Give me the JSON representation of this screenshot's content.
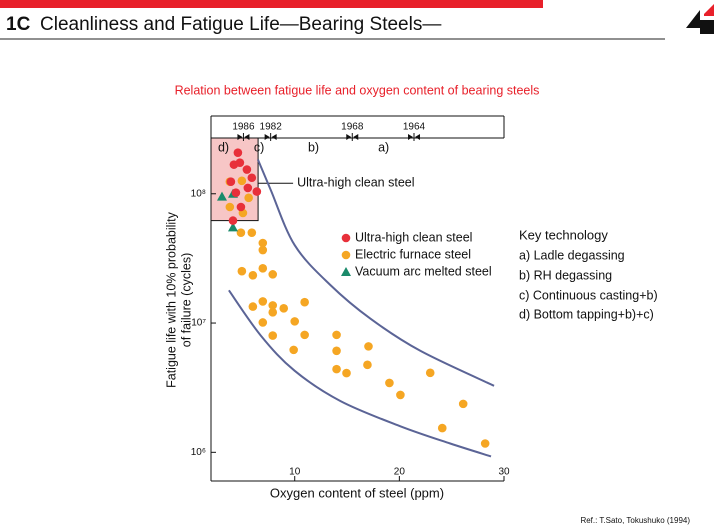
{
  "chart_data": {
    "type": "scatter",
    "section": "1C",
    "title": "Cleanliness and Fatigue Life—Bearing Steels—",
    "subtitle": "Relation between fatigue life and oxygen content of bearing steels",
    "xlabel": "Oxygen content of steel (ppm)",
    "ylabel": [
      "Fatigue life with 10% probability",
      "of failure (cycles)"
    ],
    "xlim": [
      2,
      30
    ],
    "ylim": [
      600000,
      270000000
    ],
    "log_y": true,
    "xticks": [
      10,
      20,
      30
    ],
    "yticks": [
      {
        "value": 1000000,
        "label": "10⁶"
      },
      {
        "value": 10000000,
        "label": "10⁷"
      },
      {
        "value": 100000000,
        "label": "10⁸"
      }
    ],
    "timeline": [
      {
        "label": "1986",
        "x": 5.1
      },
      {
        "label": "1982",
        "x": 7.7
      },
      {
        "label": "1968",
        "x": 15.5
      },
      {
        "label": "1964",
        "x": 21.4
      }
    ],
    "regions": [
      {
        "label": "d)",
        "x": 3.2
      },
      {
        "label": "c)",
        "x": 6.6
      },
      {
        "label": "b)",
        "x": 11.8
      },
      {
        "label": "a)",
        "x": 18.5
      }
    ],
    "box": {
      "label": "Ultra-high clean steel",
      "xlim": [
        2,
        6.5
      ],
      "ylim": [
        62000000,
        270000000
      ],
      "color": "#f7c6c6"
    },
    "curves": [
      {
        "color": "#5b6496",
        "x": [
          6.48,
          7.71,
          10,
          13.43,
          17.24,
          22,
          29.05
        ],
        "y": [
          184000000,
          107000000,
          40000000,
          19600000,
          10800000,
          6100000,
          3270000
        ]
      },
      {
        "color": "#5b6496",
        "x": [
          3.71,
          6.76,
          10,
          14.38,
          20.1,
          24.86,
          28.76
        ],
        "y": [
          17900000,
          8000000,
          4270000,
          2490000,
          1590000,
          1170000,
          930000
        ]
      }
    ],
    "series": [
      {
        "name": "Ultra-high clean steel",
        "color": "#e8303a",
        "marker": "circle",
        "x": [
          4.57,
          4.19,
          4.76,
          5.43,
          3.9,
          5.9,
          4.86,
          5.52,
          6.38,
          4.38,
          4.1
        ],
        "y": [
          208000000,
          168000000,
          174000000,
          154000000,
          124000000,
          133000000,
          79000000,
          111000000,
          104000000,
          102000000,
          62000000
        ]
      },
      {
        "name": "Electric furnace steel",
        "color": "#f5a623",
        "marker": "circle",
        "x": [
          4.86,
          5.9,
          6.95,
          6.95,
          4.95,
          6.0,
          6.95,
          7.9,
          6.0,
          6.95,
          7.9,
          7.9,
          8.95,
          10.95,
          6.95,
          7.9,
          10,
          10.95,
          9.9,
          14,
          14,
          17.05,
          14,
          14.95,
          16.95,
          19.05,
          20.1,
          22.95,
          26.1,
          24.1,
          28.2,
          3.8,
          4.95,
          5.05,
          3.8,
          5.6
        ],
        "y": [
          50000000,
          50000000,
          41600000,
          36700000,
          25200000,
          23400000,
          26500000,
          23800000,
          13400000,
          14700000,
          13700000,
          12100000,
          13000000,
          14500000,
          10100000,
          8000000,
          10300000,
          8100000,
          6200000,
          8100000,
          6100000,
          6600000,
          4400000,
          4100000,
          4750000,
          3440000,
          2780000,
          4120000,
          2370000,
          1540000,
          1170000,
          124000000,
          126000000,
          71000000,
          79000000,
          93000000
        ]
      },
      {
        "name": "Vacuum arc melted steel",
        "color": "#1a8a6a",
        "marker": "triangle",
        "x": [
          3.05,
          4.1,
          4.1
        ],
        "y": [
          95000000,
          100000000,
          55000000
        ]
      }
    ],
    "key_technology": {
      "title": "Key technology",
      "items": [
        "a) Ladle degassing",
        "b) RH degassing",
        "c) Continuous casting+b)",
        "d) Bottom tapping+b)+c)"
      ]
    },
    "reference": "Ref.:  T.Sato, Tokushuko (1994)"
  }
}
